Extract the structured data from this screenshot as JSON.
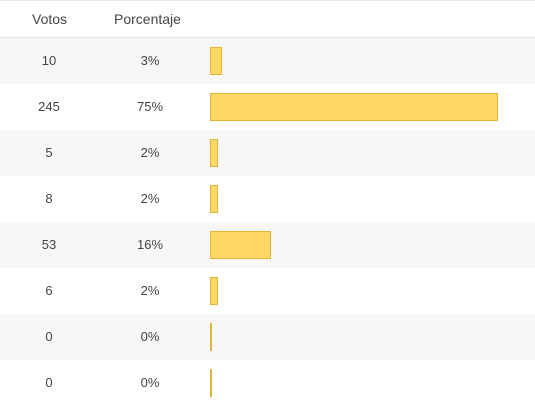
{
  "header": {
    "votes_label": "Votos",
    "percent_label": "Porcentaje"
  },
  "colors": {
    "bar_fill": "#fdd865",
    "bar_border": "#e0b53a",
    "row_stripe": "#f7f7f7"
  },
  "rows": [
    {
      "votes": "10",
      "percent": "3%",
      "fraction": 0.03
    },
    {
      "votes": "245",
      "percent": "75%",
      "fraction": 0.75
    },
    {
      "votes": "5",
      "percent": "2%",
      "fraction": 0.02
    },
    {
      "votes": "8",
      "percent": "2%",
      "fraction": 0.02
    },
    {
      "votes": "53",
      "percent": "16%",
      "fraction": 0.16
    },
    {
      "votes": "6",
      "percent": "2%",
      "fraction": 0.02
    },
    {
      "votes": "0",
      "percent": "0%",
      "fraction": 0.0
    },
    {
      "votes": "0",
      "percent": "0%",
      "fraction": 0.0
    }
  ]
}
